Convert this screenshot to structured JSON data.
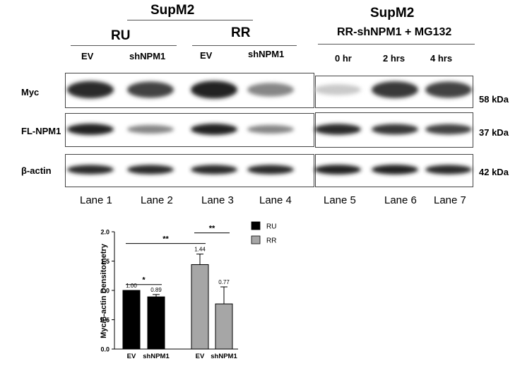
{
  "blot": {
    "left_header": "SupM2",
    "right_header": "SupM2",
    "group_ru": "RU",
    "group_rr": "RR",
    "right_group": "RR-shNPM1 + MG132",
    "lanes_left": [
      "EV",
      "shNPM1",
      "EV",
      "shNPM1"
    ],
    "lanes_right": [
      "0 hr",
      "2 hrs",
      "4 hrs"
    ],
    "rows": [
      {
        "label": "Myc",
        "kda": "58 kDa",
        "intensity": [
          0.85,
          0.75,
          0.9,
          0.45,
          0.15,
          0.8,
          0.75
        ]
      },
      {
        "label": "FL-NPM1",
        "kda": "37 kDa",
        "intensity": [
          0.9,
          0.45,
          0.9,
          0.45,
          0.85,
          0.8,
          0.75
        ]
      },
      {
        "label": "β-actin",
        "kda": "42 kDa",
        "intensity": [
          0.85,
          0.85,
          0.85,
          0.85,
          0.9,
          0.9,
          0.85
        ]
      }
    ],
    "lane_labels": [
      "Lane 1",
      "Lane 2",
      "Lane 3",
      "Lane 4",
      "Lane 5",
      "Lane 6",
      "Lane 7"
    ]
  },
  "chart_data": {
    "type": "bar",
    "ylabel": "Myc/β-actin Densitometry",
    "ylim": [
      0,
      2.0
    ],
    "yticks": [
      "0.0",
      "0.5",
      "1.0",
      "1.5",
      "2.0"
    ],
    "categories": [
      "EV",
      "shNPM1",
      "EV",
      "shNPM1"
    ],
    "groups": [
      "RU",
      "RU",
      "RR",
      "RR"
    ],
    "values": [
      1.0,
      0.89,
      1.44,
      0.77
    ],
    "value_labels": [
      "1.00",
      "0.89",
      "1.44",
      "0.77"
    ],
    "errors": [
      0.0,
      0.04,
      0.18,
      0.29
    ],
    "legend": [
      {
        "name": "RU",
        "color": "#000000"
      },
      {
        "name": "RR",
        "color": "#a6a6a6"
      }
    ],
    "significance": [
      {
        "from": 0,
        "to": 1,
        "label": "*"
      },
      {
        "from": 0,
        "to": 2,
        "label": "**"
      },
      {
        "from": 2,
        "to": 3,
        "label": "**"
      }
    ],
    "legend_position": "top-right",
    "grid": false
  }
}
